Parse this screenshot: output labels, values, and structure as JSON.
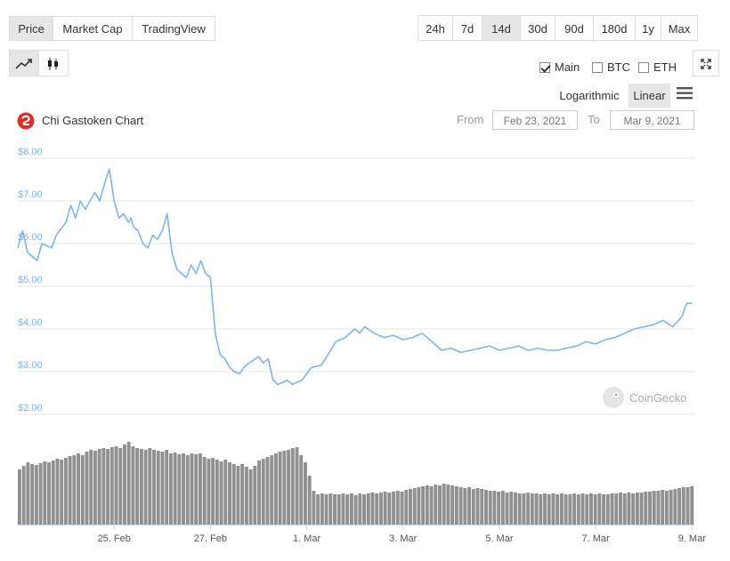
{
  "tabs": {
    "price": "Price",
    "market_cap": "Market Cap",
    "tradingview": "TradingView"
  },
  "ranges": [
    "24h",
    "7d",
    "14d",
    "30d",
    "90d",
    "180d",
    "1y",
    "Max"
  ],
  "active_range": "14d",
  "compare": {
    "main": "Main",
    "btc": "BTC",
    "eth": "ETH"
  },
  "scale": {
    "logarithmic": "Logarithmic",
    "linear": "Linear",
    "active": "Linear"
  },
  "chart_title": "Chi Gastoken Chart",
  "date_range": {
    "from_label": "From",
    "from_value": "Feb 23, 2021",
    "to_label": "To",
    "to_value": "Mar 9, 2021"
  },
  "watermark": "CoinGecko",
  "colors": {
    "price_line": "#7cb5ec",
    "volume_bar": "#909090",
    "grid": "#e6e6e6",
    "axis_label": "#7cb5ec",
    "brand_red": "#d9302b"
  },
  "chart_data": {
    "type": "line",
    "title": "Chi Gastoken Chart",
    "ylim": [
      2,
      8
    ],
    "y_ticks": [
      "$2.00",
      "$3.00",
      "$4.00",
      "$5.00",
      "$6.00",
      "$7.00",
      "$8.00"
    ],
    "y_tick_values": [
      2,
      3,
      4,
      5,
      6,
      7,
      8
    ],
    "x_ticks": [
      "25. Feb",
      "27. Feb",
      "1. Mar",
      "3. Mar",
      "5. Mar",
      "7. Mar",
      "9. Mar"
    ],
    "x_tick_days": [
      2,
      4,
      6,
      8,
      10,
      12,
      14
    ],
    "x_start": "Feb 23, 2021",
    "x_end": "Mar 9, 2021",
    "grid": true,
    "series": [
      {
        "days": [
          0,
          0.1,
          0.2,
          0.3,
          0.4,
          0.5,
          0.7,
          0.8,
          1.0,
          1.1,
          1.2,
          1.3,
          1.4,
          1.6,
          1.7,
          1.8,
          1.9,
          2.0,
          2.1,
          2.2,
          2.3,
          2.35,
          2.4,
          2.5,
          2.6,
          2.7,
          2.8,
          2.9,
          3.0,
          3.1,
          3.2,
          3.3,
          3.4,
          3.5,
          3.6,
          3.7,
          3.8,
          3.9,
          4.0,
          4.1,
          4.2,
          4.3,
          4.4,
          4.5,
          4.6,
          4.7,
          4.8,
          5.0,
          5.1,
          5.2,
          5.3,
          5.4,
          5.5,
          5.6,
          5.7,
          5.9,
          6.0,
          6.1,
          6.3,
          6.5,
          6.6,
          6.8,
          7.0,
          7.1,
          7.2,
          7.4,
          7.6,
          7.8,
          8.0,
          8.2,
          8.4,
          8.6,
          8.8,
          9.0,
          9.2,
          9.4,
          9.6,
          9.8,
          10.0,
          10.2,
          10.4,
          10.6,
          10.8,
          11.0,
          11.2,
          11.4,
          11.6,
          11.8,
          12.0,
          12.2,
          12.4,
          12.6,
          12.8,
          13.0,
          13.2,
          13.4,
          13.6,
          13.8,
          13.85,
          13.9,
          14.0
        ],
        "values": [
          5.9,
          6.3,
          5.8,
          5.7,
          5.6,
          6.0,
          5.9,
          6.2,
          6.5,
          6.9,
          6.6,
          7.0,
          6.8,
          7.2,
          7.0,
          7.4,
          7.75,
          7.0,
          6.6,
          6.7,
          6.5,
          6.6,
          6.4,
          6.3,
          6.0,
          5.9,
          6.2,
          6.1,
          6.3,
          6.7,
          5.8,
          5.4,
          5.3,
          5.2,
          5.5,
          5.3,
          5.6,
          5.3,
          5.2,
          3.9,
          3.4,
          3.3,
          3.1,
          3.0,
          2.95,
          3.1,
          3.2,
          3.35,
          3.2,
          3.3,
          2.8,
          2.7,
          2.75,
          2.8,
          2.7,
          2.8,
          2.95,
          3.1,
          3.15,
          3.5,
          3.7,
          3.8,
          4.0,
          3.9,
          4.05,
          3.9,
          3.8,
          3.85,
          3.75,
          3.8,
          3.9,
          3.7,
          3.5,
          3.55,
          3.45,
          3.5,
          3.55,
          3.6,
          3.5,
          3.55,
          3.6,
          3.5,
          3.55,
          3.5,
          3.5,
          3.55,
          3.6,
          3.7,
          3.65,
          3.75,
          3.8,
          3.9,
          4.0,
          4.05,
          4.1,
          4.2,
          4.05,
          4.3,
          4.5,
          4.6,
          4.6
        ]
      }
    ],
    "volume": [
      62,
      66,
      70,
      68,
      67,
      69,
      71,
      70,
      72,
      74,
      73,
      75,
      77,
      78,
      80,
      78,
      82,
      84,
      83,
      85,
      86,
      85,
      87,
      88,
      86,
      90,
      93,
      88,
      86,
      85,
      84,
      86,
      84,
      83,
      82,
      84,
      80,
      81,
      79,
      80,
      78,
      80,
      79,
      80,
      76,
      74,
      75,
      73,
      71,
      73,
      70,
      68,
      66,
      68,
      65,
      62,
      66,
      72,
      74,
      76,
      78,
      80,
      82,
      83,
      84,
      86,
      87,
      78,
      70,
      55,
      38,
      34,
      35,
      34,
      35,
      34,
      34,
      35,
      34,
      35,
      33,
      35,
      34,
      35,
      36,
      35,
      36,
      37,
      36,
      37,
      38,
      37,
      39,
      40,
      41,
      42,
      43,
      44,
      43,
      45,
      44,
      46,
      45,
      44,
      43,
      42,
      41,
      42,
      40,
      41,
      40,
      39,
      38,
      38,
      37,
      38,
      36,
      37,
      36,
      35,
      35,
      36,
      35,
      35,
      34,
      35,
      34,
      35,
      34,
      35,
      34,
      34,
      35,
      34,
      35,
      34,
      35,
      34,
      35,
      34,
      34,
      35,
      35,
      36,
      35,
      36,
      35,
      36,
      36,
      37,
      37,
      38,
      38,
      39,
      38,
      39,
      40,
      41,
      42,
      42,
      43
    ]
  }
}
